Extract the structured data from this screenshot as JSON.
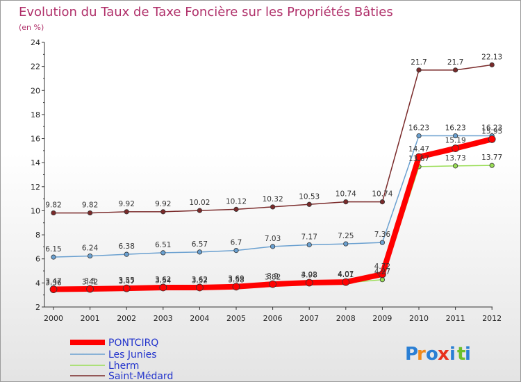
{
  "chart_data": {
    "type": "line",
    "title": "Evolution du Taux de Taxe Foncière sur les Propriétés Bâties",
    "subtitle": "(en %)",
    "x": [
      "2000",
      "2001",
      "2002",
      "2003",
      "2004",
      "2005",
      "2006",
      "2007",
      "2008",
      "2009",
      "2010",
      "2011",
      "2012"
    ],
    "yticks": [
      "2",
      "4",
      "6",
      "8",
      "10",
      "12",
      "14",
      "16",
      "18",
      "20",
      "22",
      "24"
    ],
    "ylim": [
      2,
      24
    ],
    "series": [
      {
        "name": "PONTCIRQ",
        "color": "#ff0000",
        "values": [
          3.47,
          3.5,
          3.55,
          3.62,
          3.62,
          3.69,
          3.9,
          4.02,
          4.07,
          4.72,
          14.47,
          15.19,
          15.95
        ],
        "labels": [
          "3.47",
          "3.5",
          "3.55",
          "3.62",
          "3.62",
          "3.69",
          "3.9",
          "4.02",
          "4.07",
          "4.72",
          "14.47",
          "15.19",
          "15.95"
        ]
      },
      {
        "name": "Les Junies",
        "color": "#6aa0d0",
        "values": [
          6.15,
          6.24,
          6.38,
          6.51,
          6.57,
          6.7,
          7.03,
          7.17,
          7.25,
          7.36,
          16.23,
          16.23,
          16.23
        ],
        "labels": [
          "6.15",
          "6.24",
          "6.38",
          "6.51",
          "6.57",
          "6.7",
          "7.03",
          "7.17",
          "7.25",
          "7.36",
          "16.23",
          "16.23",
          "16.23"
        ]
      },
      {
        "name": "Lherm",
        "color": "#99dd55",
        "values": [
          3.36,
          3.42,
          3.47,
          3.54,
          3.52,
          3.58,
          3.82,
          3.98,
          4.01,
          4.27,
          13.67,
          13.73,
          13.77
        ],
        "labels": [
          "3.36",
          "3.42",
          "3.47",
          "3.54",
          "3.52",
          "3.58",
          "3.82",
          "3.98",
          "4.01",
          "4.27",
          "13.67",
          "13.73",
          "13.77"
        ]
      },
      {
        "name": "Saint-Médard",
        "color": "#7a2a2a",
        "values": [
          9.82,
          9.82,
          9.92,
          9.92,
          10.02,
          10.12,
          10.32,
          10.53,
          10.74,
          10.74,
          21.7,
          21.7,
          22.13
        ],
        "labels": [
          "9.82",
          "9.82",
          "9.92",
          "9.92",
          "10.02",
          "10.12",
          "10.32",
          "10.53",
          "10.74",
          "10.74",
          "21.7",
          "21.7",
          "22.13"
        ]
      }
    ],
    "legend_position": "bottom-left",
    "grid": false
  },
  "branding": {
    "text": "Proxiti",
    "letters": [
      "P",
      "r",
      "o",
      "x",
      "i",
      "t",
      "i"
    ],
    "colors": [
      "#2a7fd4",
      "#f08a1c",
      "#2a7fd4",
      "#e8301c",
      "#2a7fd4",
      "#6cc02a",
      "#2a7fd4"
    ]
  }
}
